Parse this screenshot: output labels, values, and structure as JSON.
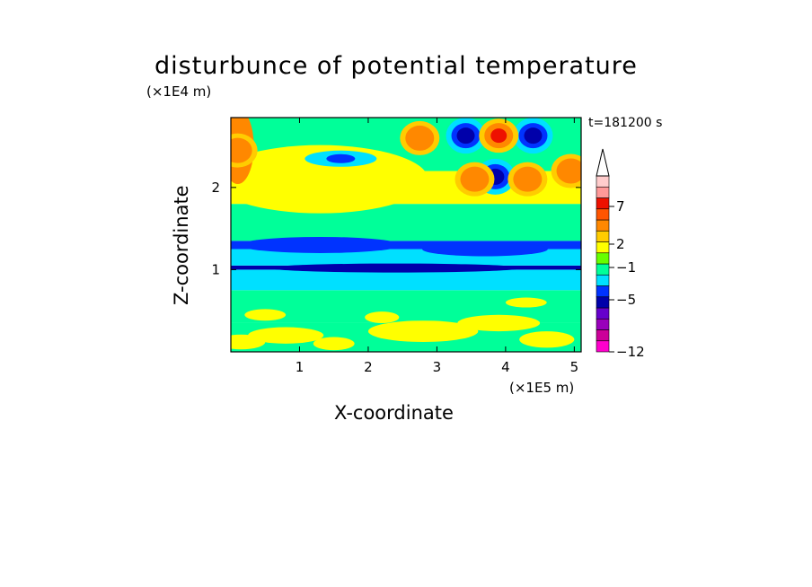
{
  "chart_data": {
    "type": "heatmap",
    "title": "disturbunce of potential temperature",
    "xlabel": "X-coordinate",
    "ylabel": "Z-coordinate",
    "x_unit": "(×1E5 m)",
    "y_unit": "(×1E4 m)",
    "annotation": "t=181200 s",
    "xlim": [
      0,
      5.1
    ],
    "ylim": [
      0,
      2.85
    ],
    "x_ticks": [
      1,
      2,
      3,
      4,
      5
    ],
    "x_tick_labels": [
      "1",
      "2",
      "3",
      "4",
      "5"
    ],
    "y_ticks": [
      1,
      2
    ],
    "y_tick_labels": [
      "1",
      "2"
    ],
    "colorbar": {
      "tick_labels": [
        {
          "value": -12,
          "label": "−12"
        },
        {
          "value": -5,
          "label": "−5"
        },
        {
          "value": -1,
          "label": "−1"
        },
        {
          "value": 2,
          "label": "2"
        },
        {
          "value": 7,
          "label": "7"
        }
      ],
      "colors": [
        "#ff00cc",
        "#cc0099",
        "#9900bb",
        "#6600cc",
        "#0000aa",
        "#0033ff",
        "#00e0ff",
        "#00ff99",
        "#66ff00",
        "#ffff00",
        "#ffcc00",
        "#ff8800",
        "#ff5500",
        "#ee1100",
        "#ff9999",
        "#ffcccc"
      ]
    },
    "bands": [
      {
        "z": [
          0.0,
          0.35
        ],
        "level": "yellow/green mix"
      },
      {
        "z": [
          0.35,
          0.75
        ],
        "level": "green"
      },
      {
        "z": [
          0.75,
          1.0
        ],
        "level": "cyan"
      },
      {
        "z": [
          1.0,
          1.05
        ],
        "level": "blue"
      },
      {
        "z": [
          1.05,
          1.25
        ],
        "level": "cyan"
      },
      {
        "z": [
          1.25,
          1.35
        ],
        "level": "blue"
      },
      {
        "z": [
          1.35,
          1.8
        ],
        "level": "green"
      },
      {
        "z": [
          1.8,
          2.2
        ],
        "level": "yellow/orange"
      },
      {
        "z": [
          2.2,
          2.85
        ],
        "level": "wave cells"
      }
    ],
    "cells": [
      {
        "x": 3.42,
        "z": 2.63,
        "level": -5
      },
      {
        "x": 3.85,
        "z": 2.13,
        "level": -5
      },
      {
        "x": 4.4,
        "z": 2.63,
        "level": -5
      },
      {
        "x": 3.9,
        "z": 2.63,
        "level": 7
      },
      {
        "x": 3.55,
        "z": 2.1,
        "level": 6
      },
      {
        "x": 4.32,
        "z": 2.1,
        "level": 6
      },
      {
        "x": 4.95,
        "z": 2.2,
        "level": 5
      },
      {
        "x": 2.75,
        "z": 2.6,
        "level": 4
      },
      {
        "x": 0.1,
        "z": 2.45,
        "level": 4
      }
    ]
  }
}
